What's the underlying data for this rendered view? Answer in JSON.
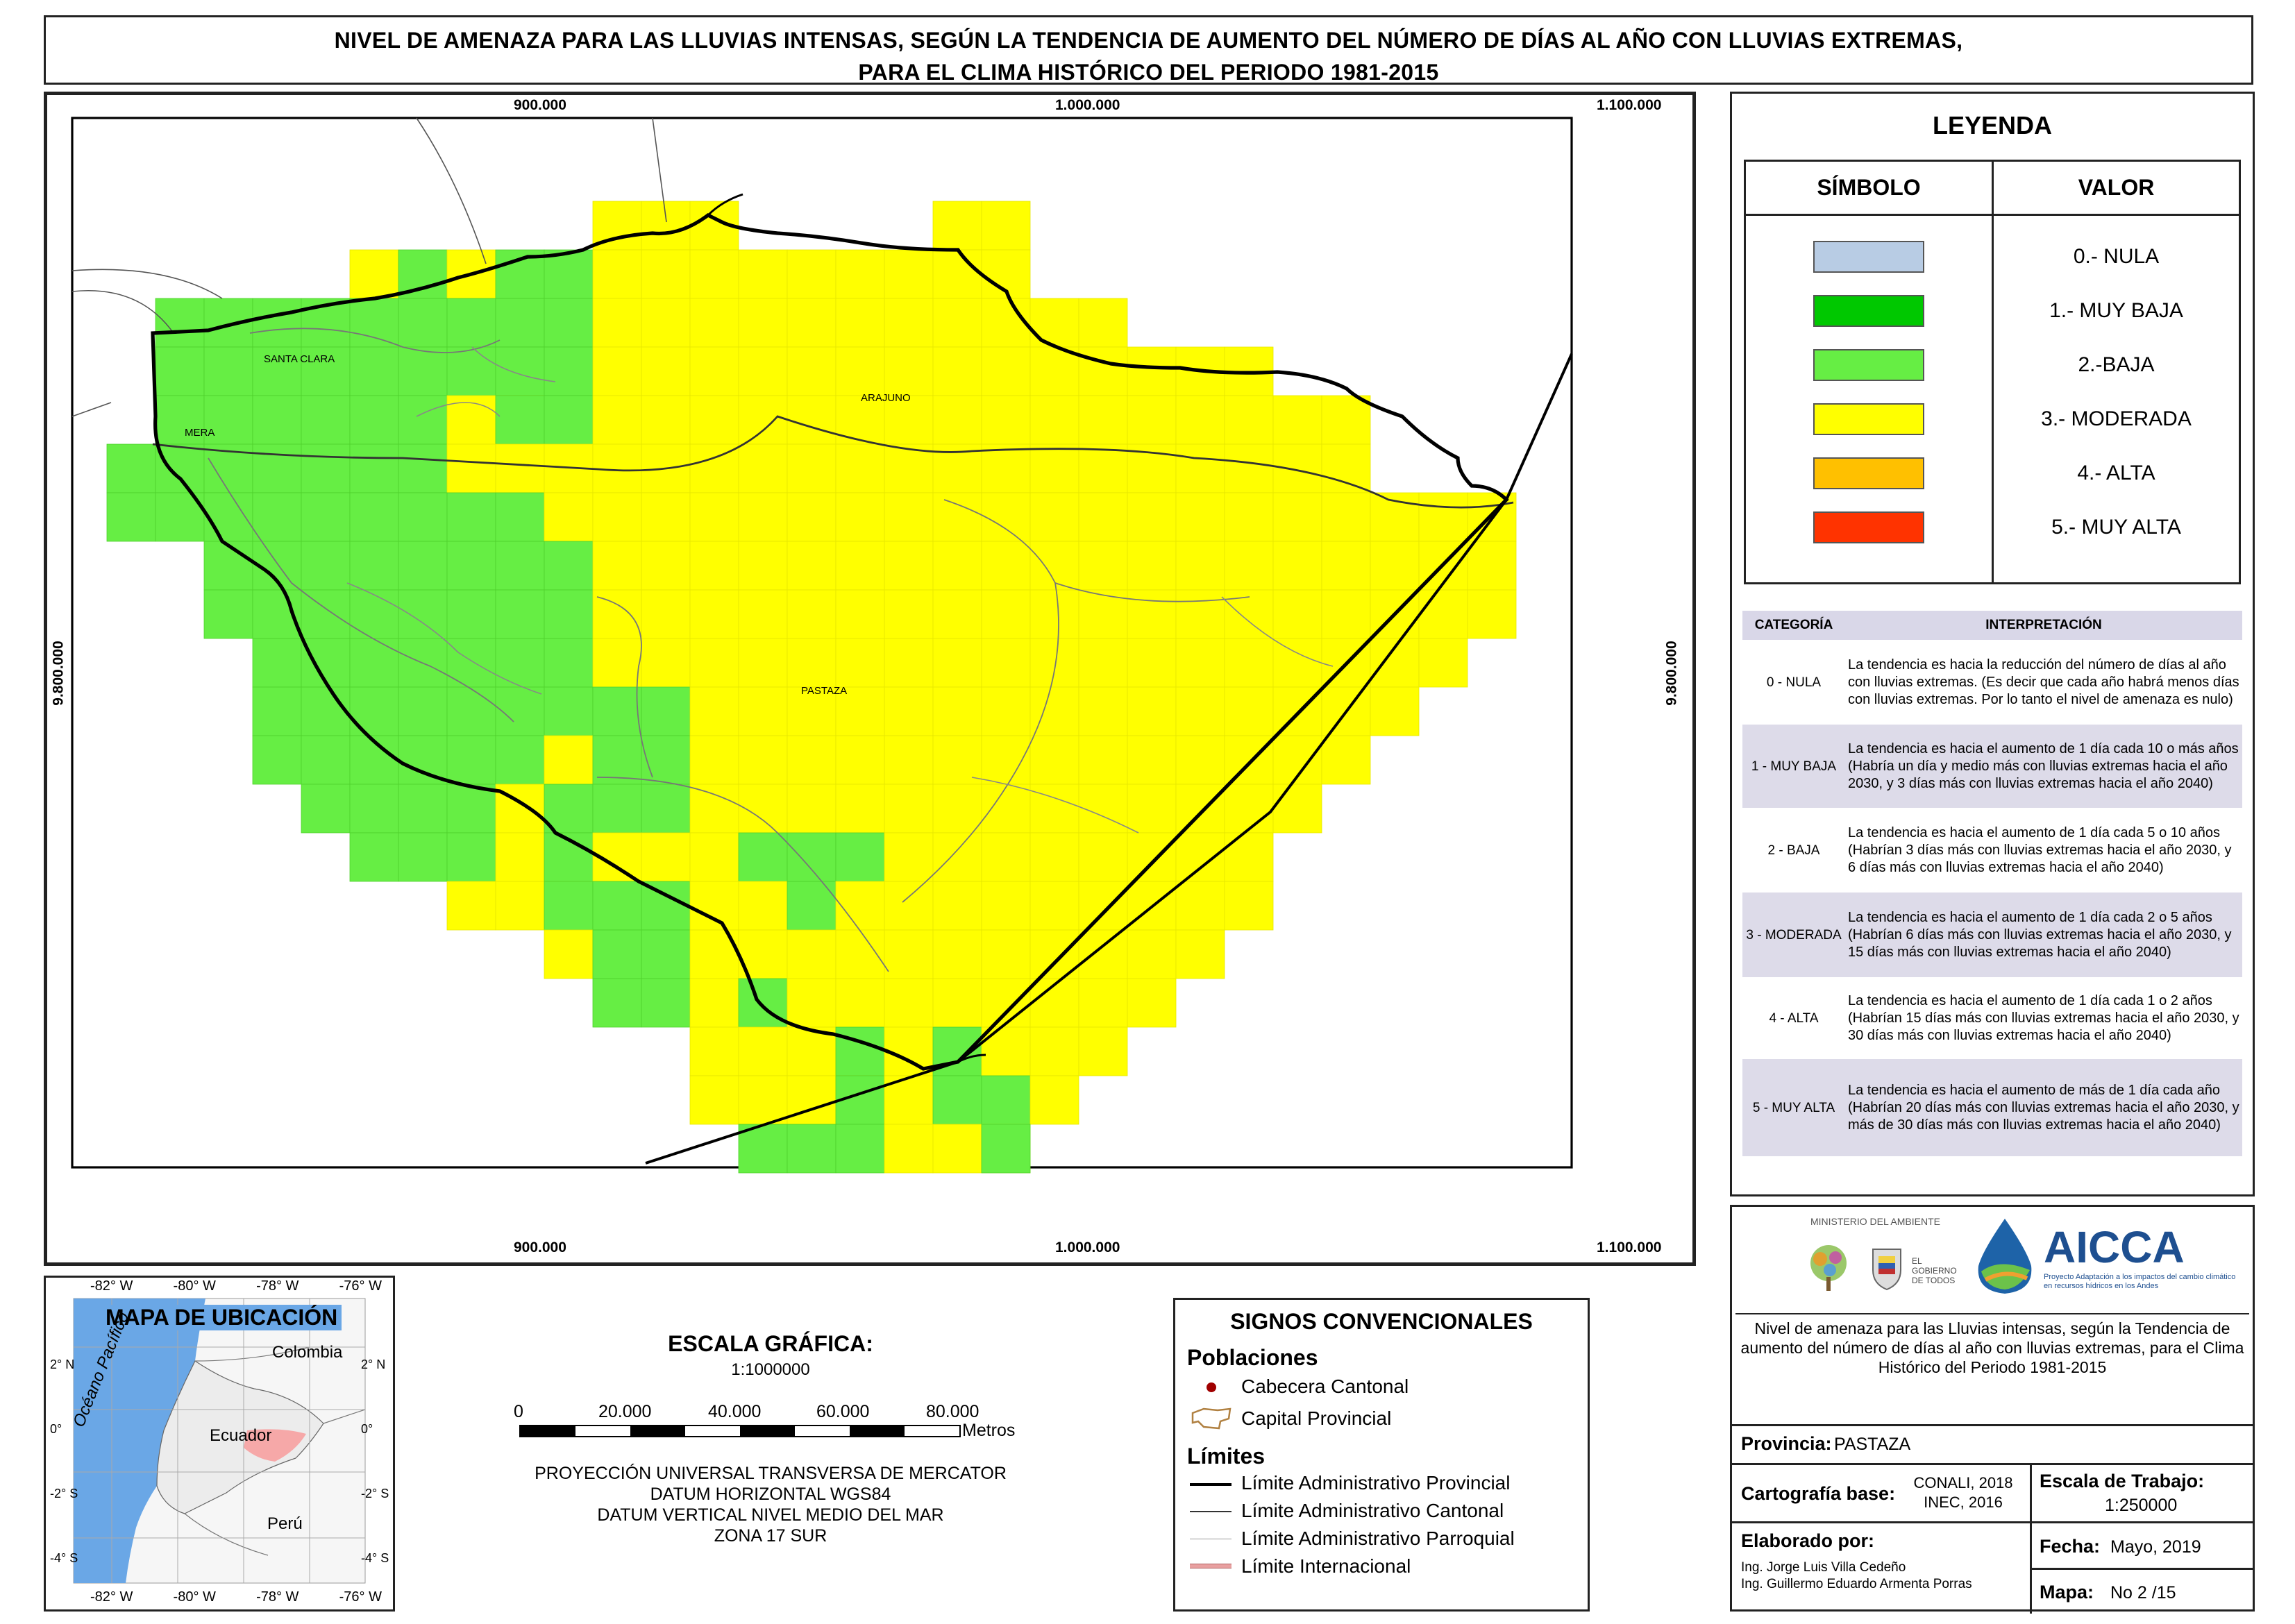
{
  "title": {
    "line1": "NIVEL DE AMENAZA PARA LAS LLUVIAS INTENSAS, SEGÚN LA TENDENCIA DE AUMENTO DEL NÚMERO DE DÍAS AL AÑO CON LLUVIAS EXTREMAS,",
    "line2": "PARA EL CLIMA HISTÓRICO DEL PERIODO 1981-2015"
  },
  "map": {
    "x_ticks": [
      "900.000",
      "1.000.000",
      "1.100.000"
    ],
    "y_tick": "9.800.000",
    "places": [
      "SANTA CLARA",
      "MERA",
      "ARAJUNO",
      "PASTAZA"
    ],
    "colors": {
      "nula": "#b8cce4",
      "muy_baja": "#00c800",
      "baja": "#66ee44",
      "moderada": "#ffff00",
      "alta": "#ffc000",
      "muy_alta": "#ff3300"
    }
  },
  "legend": {
    "title": "LEYENDA",
    "col_symbol": "SÍMBOLO",
    "col_value": "VALOR",
    "items": [
      {
        "label": "0.- NULA",
        "color": "#b8cce4"
      },
      {
        "label": "1.- MUY BAJA",
        "color": "#00c800"
      },
      {
        "label": "2.-BAJA",
        "color": "#66ee44"
      },
      {
        "label": "3.- MODERADA",
        "color": "#ffff00"
      },
      {
        "label": "4.- ALTA",
        "color": "#ffc000"
      },
      {
        "label": "5.- MUY ALTA",
        "color": "#ff3300"
      }
    ]
  },
  "interpretation": {
    "col_category": "CATEGORÍA",
    "col_interpretation": "INTERPRETACIÓN",
    "rows": [
      {
        "cat": "0 - NULA",
        "text": "La tendencia es hacia la reducción del número de días al año con lluvias extremas. (Es decir que cada año habrá menos días con lluvias extremas. Por lo tanto el nivel de amenaza es nulo)"
      },
      {
        "cat": "1 - MUY BAJA",
        "text": "La tendencia es hacia el aumento de 1 día cada 10 o más años (Habría un día y medio más con lluvias extremas hacia el año 2030, y 3 días más con lluvias extremas hacia el año 2040)"
      },
      {
        "cat": "2 - BAJA",
        "text": "La tendencia es hacia el aumento de 1 día cada 5 o 10 años (Habrían 3 días más con lluvias extremas hacia el año 2030, y 6 días más con lluvias extremas hacia el año 2040)"
      },
      {
        "cat": "3 - MODERADA",
        "text": "La tendencia es hacia el aumento de 1 día cada 2 o 5 años (Habrían 6 días más con lluvias extremas hacia el año 2030, y 15 días más con lluvias extremas hacia el año 2040)"
      },
      {
        "cat": "4 - ALTA",
        "text": "La tendencia es hacia el aumento de 1 día cada 1 o 2 años (Habrían 15 días más con lluvias extremas hacia el año 2030, y 30 días más con lluvias extremas hacia el año 2040)"
      },
      {
        "cat": "5 - MUY ALTA",
        "text": "La tendencia es hacia el aumento de más de 1 día cada año (Habrían 20 días más con lluvias extremas hacia el año 2030, y más de 30 días más con lluvias extremas hacia el año 2040)"
      }
    ]
  },
  "location_map": {
    "title": "MAPA DE UBICACIÓN",
    "lon_labels": [
      "-82° W",
      "-80° W",
      "-78° W",
      "-76° W"
    ],
    "lat_labels": [
      "2° N",
      "0°",
      "-2° S",
      "-4° S"
    ],
    "ocean": "Océano Pacífico",
    "countries": [
      "Colombia",
      "Ecuador",
      "Perú"
    ]
  },
  "scale": {
    "title": "ESCALA GRÁFICA:",
    "ratio": "1:1000000",
    "ticks": [
      "0",
      "20.000",
      "40.000",
      "60.000",
      "80.000"
    ],
    "unit": "Metros",
    "projection": [
      "PROYECCIÓN UNIVERSAL TRANSVERSA DE MERCATOR",
      "DATUM HORIZONTAL WGS84",
      "DATUM VERTICAL NIVEL MEDIO DEL MAR",
      "ZONA 17 SUR"
    ]
  },
  "signs": {
    "title": "SIGNOS CONVENCIONALES",
    "poblaciones": "Poblaciones",
    "cabecera": "Cabecera Cantonal",
    "capital": "Capital Provincial",
    "limites": "Límites",
    "lim_provincial": "Límite Administrativo Provincial",
    "lim_cantonal": "Límite Administrativo Cantonal",
    "lim_parroquial": "Límite Administrativo Parroquial",
    "lim_internacional": "Límite Internacional"
  },
  "logos": {
    "ministerio": "MINISTERIO DEL AMBIENTE",
    "gobierno": "EL GOBIERNO DE TODOS",
    "aicca": "AICCA",
    "aicca_sub": "Proyecto Adaptación a los impactos del cambio climático en recursos hídricos en los Andes"
  },
  "info": {
    "description": "Nivel de amenaza para las Lluvias intensas, según la Tendencia de aumento del número de días al año con lluvias extremas, para el Clima Histórico del Periodo 1981-2015",
    "provincia_label": "Provincia:",
    "provincia": "PASTAZA",
    "cartografia_label": "Cartografía base:",
    "cartografia": [
      "CONALI, 2018",
      "INEC, 2016"
    ],
    "escala_label": "Escala de Trabajo:",
    "escala": "1:250000",
    "elaborado_label": "Elaborado por:",
    "elaborado": [
      "Ing. Jorge Luis Villa Cedeño",
      "Ing. Guillermo Eduardo Armenta Porras"
    ],
    "fecha_label": "Fecha:",
    "fecha": "Mayo, 2019",
    "mapa_label": "Mapa:",
    "mapa": "No 2 /15"
  }
}
